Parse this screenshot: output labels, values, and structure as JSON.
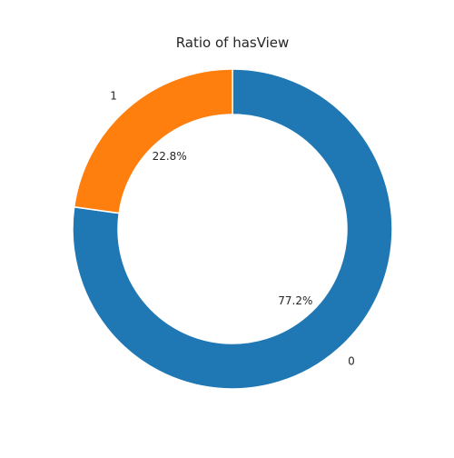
{
  "chart_data": {
    "type": "pie",
    "title": "Ratio of hasView",
    "categories": [
      "0",
      "1"
    ],
    "values": [
      77.2,
      22.8
    ],
    "percent_labels": [
      "77.2%",
      "22.8%"
    ],
    "colors": [
      "#1f77b4",
      "#ff7f0e"
    ],
    "donut": true,
    "legend": "none"
  }
}
